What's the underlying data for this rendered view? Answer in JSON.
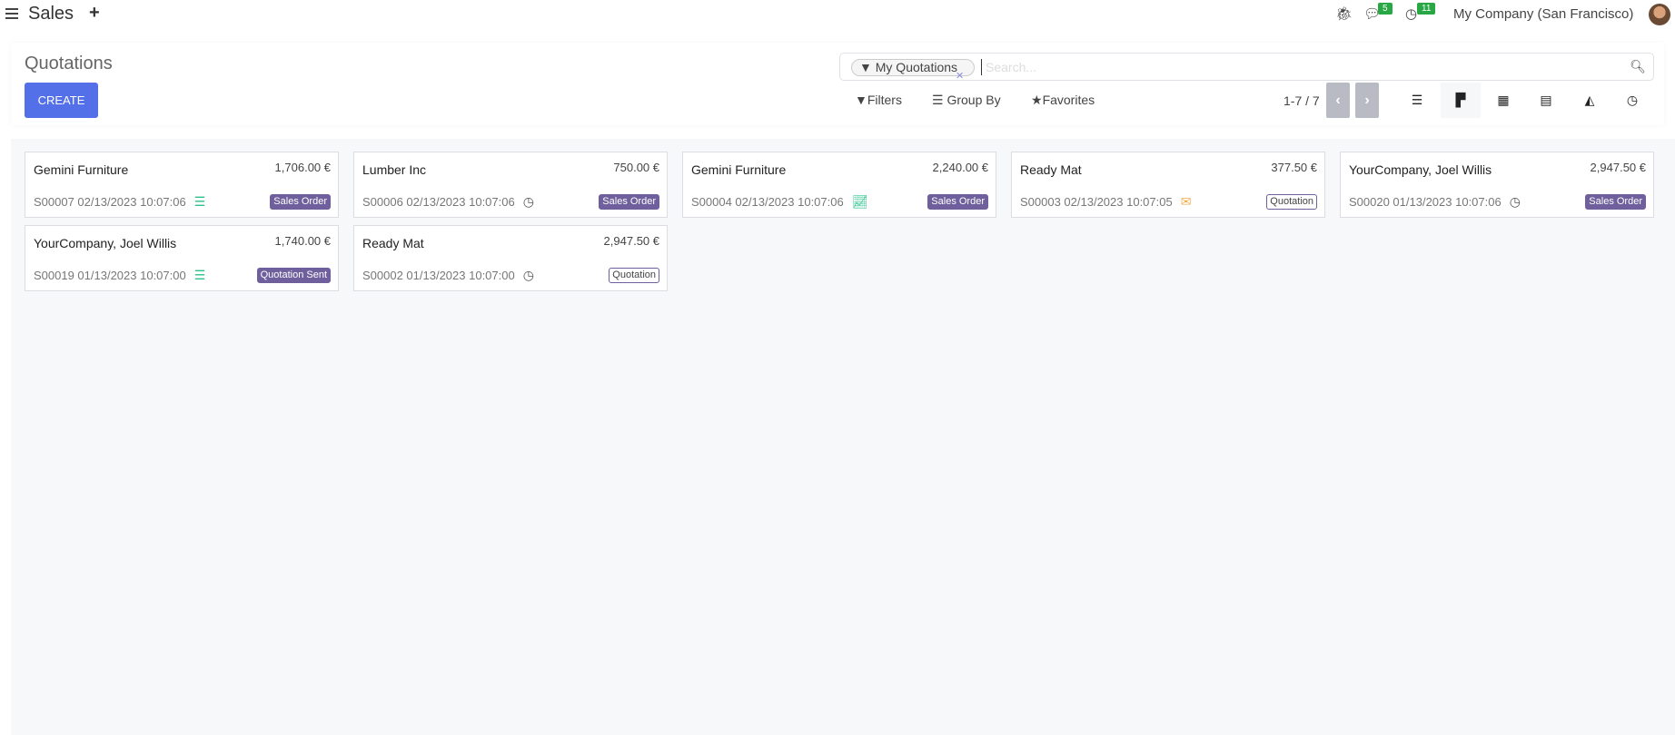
{
  "topbar": {
    "app": "Sales",
    "messages_count": "5",
    "activities_count": "11",
    "company": "My Company (San Francisco)"
  },
  "control_panel": {
    "title": "Quotations",
    "create_label": "CREATE",
    "facet": "My Quotations",
    "search_placeholder": "Search...",
    "filters": "Filters",
    "group_by": "Group By",
    "favorites": "Favorites",
    "pager": "1-7 / 7",
    "active_view": "kanban"
  },
  "colors": {
    "primary": "#5470e8",
    "tag": "#6f5f9c",
    "badge": "#28a745"
  },
  "cards": [
    {
      "customer": "Gemini Furniture",
      "amount": "1,706.00 €",
      "ref": "S00007 02/13/2023 10:07:06",
      "activity": "tasks-icon",
      "activity_color": "#28c28a",
      "status": "Sales Order",
      "style": "filled"
    },
    {
      "customer": "Lumber Inc",
      "amount": "750.00 €",
      "ref": "S00006 02/13/2023 10:07:06",
      "activity": "clock-icon",
      "activity_color": "#555555",
      "status": "Sales Order",
      "style": "filled"
    },
    {
      "customer": "Gemini Furniture",
      "amount": "2,240.00 €",
      "ref": "S00004 02/13/2023 10:07:06",
      "activity": "chart-up-icon",
      "activity_color": "#28c28a",
      "status": "Sales Order",
      "style": "filled"
    },
    {
      "customer": "Ready Mat",
      "amount": "377.50 €",
      "ref": "S00003 02/13/2023 10:07:05",
      "activity": "envelope-icon",
      "activity_color": "#f0ad4e",
      "status": "Quotation",
      "style": "outline"
    },
    {
      "customer": "YourCompany, Joel Willis",
      "amount": "2,947.50 €",
      "ref": "S00020 01/13/2023 10:07:06",
      "activity": "clock-icon",
      "activity_color": "#555555",
      "status": "Sales Order",
      "style": "filled"
    },
    {
      "customer": "YourCompany, Joel Willis",
      "amount": "1,740.00 €",
      "ref": "S00019 01/13/2023 10:07:00",
      "activity": "tasks-icon",
      "activity_color": "#28c28a",
      "status": "Quotation Sent",
      "style": "filled"
    },
    {
      "customer": "Ready Mat",
      "amount": "2,947.50 €",
      "ref": "S00002 01/13/2023 10:07:00",
      "activity": "clock-icon",
      "activity_color": "#555555",
      "status": "Quotation",
      "style": "outline"
    }
  ]
}
